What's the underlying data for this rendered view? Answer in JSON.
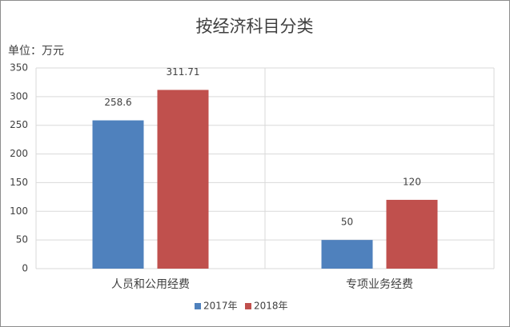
{
  "chart_data": {
    "type": "bar",
    "title": "按经济科目分类",
    "unit_label": "单位：万元",
    "categories": [
      "人员和公用经费",
      "专项业务经费"
    ],
    "series": [
      {
        "name": "2017年",
        "color": "#4f81bd",
        "values": [
          258.6,
          50
        ]
      },
      {
        "name": "2018年",
        "color": "#c0504d",
        "values": [
          311.71,
          120
        ]
      }
    ],
    "ylim": [
      0,
      350
    ],
    "yticks": [
      0,
      50,
      100,
      150,
      200,
      250,
      300,
      350
    ],
    "grid": true,
    "legend": "bottom"
  }
}
